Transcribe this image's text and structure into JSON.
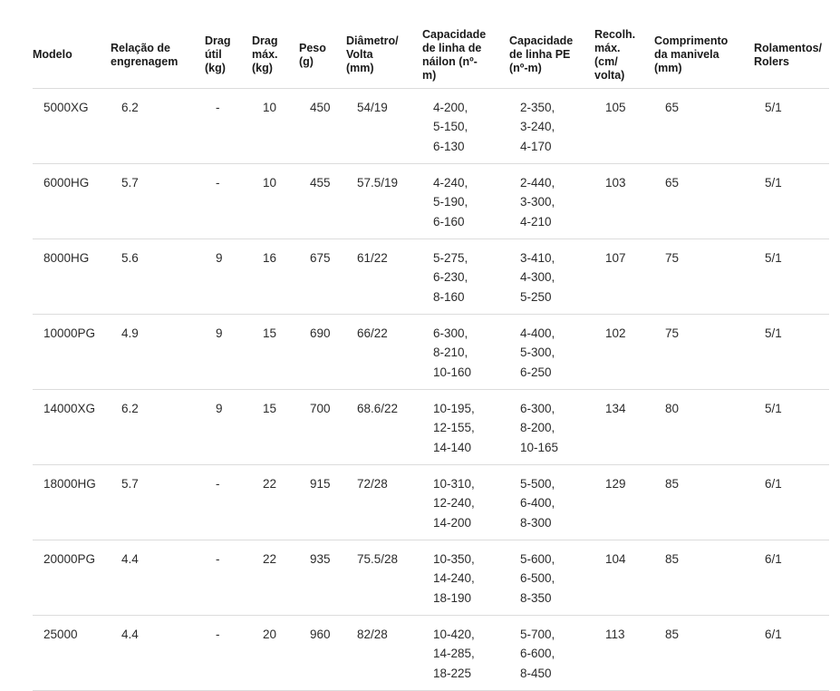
{
  "chart_data": {
    "type": "table",
    "title": "",
    "columns": [
      "Modelo",
      "Relação de\nengrenagem",
      "Drag\nútil\n(kg)",
      "Drag\nmáx.\n(kg)",
      "Peso\n(g)",
      "Diâmetro/\nVolta\n(mm)",
      "Capacidade\nde linha de\nnáilon (nº-\nm)",
      "Capacidade\nde linha PE\n(nº-m)",
      "Recolh.\nmáx.\n(cm/\nvolta)",
      "Comprimento\nda manivela\n(mm)",
      "Rolamentos/\nRolers"
    ],
    "rows": [
      [
        "5000XG",
        "6.2",
        "-",
        "10",
        "450",
        "54/19",
        "4-200,\n5-150,\n6-130",
        "2-350,\n3-240,\n4-170",
        "105",
        "65",
        "5/1"
      ],
      [
        "6000HG",
        "5.7",
        "-",
        "10",
        "455",
        "57.5/19",
        "4-240,\n5-190,\n6-160",
        "2-440,\n3-300,\n4-210",
        "103",
        "65",
        "5/1"
      ],
      [
        "8000HG",
        "5.6",
        "9",
        "16",
        "675",
        "61/22",
        "5-275,\n6-230,\n8-160",
        "3-410,\n4-300,\n5-250",
        "107",
        "75",
        "5/1"
      ],
      [
        "10000PG",
        "4.9",
        "9",
        "15",
        "690",
        "66/22",
        "6-300,\n8-210,\n10-160",
        "4-400,\n5-300,\n6-250",
        "102",
        "75",
        "5/1"
      ],
      [
        "14000XG",
        "6.2",
        "9",
        "15",
        "700",
        "68.6/22",
        "10-195,\n12-155,\n14-140",
        "6-300,\n8-200,\n10-165",
        "134",
        "80",
        "5/1"
      ],
      [
        "18000HG",
        "5.7",
        "-",
        "22",
        "915",
        "72/28",
        "10-310,\n12-240,\n14-200",
        "5-500,\n6-400,\n8-300",
        "129",
        "85",
        "6/1"
      ],
      [
        "20000PG",
        "4.4",
        "-",
        "22",
        "935",
        "75.5/28",
        "10-350,\n14-240,\n18-190",
        "5-600,\n6-500,\n8-350",
        "104",
        "85",
        "6/1"
      ],
      [
        "25000",
        "4.4",
        "-",
        "20",
        "960",
        "82/28",
        "10-420,\n14-285,\n18-225",
        "5-700,\n6-600,\n8-450",
        "113",
        "85",
        "6/1"
      ]
    ],
    "layout": {
      "background": "#ffffff",
      "divider_color": "#dcdcdc",
      "header_text_color": "#1a1a1a",
      "body_text_color": "#2b2b2b"
    }
  }
}
